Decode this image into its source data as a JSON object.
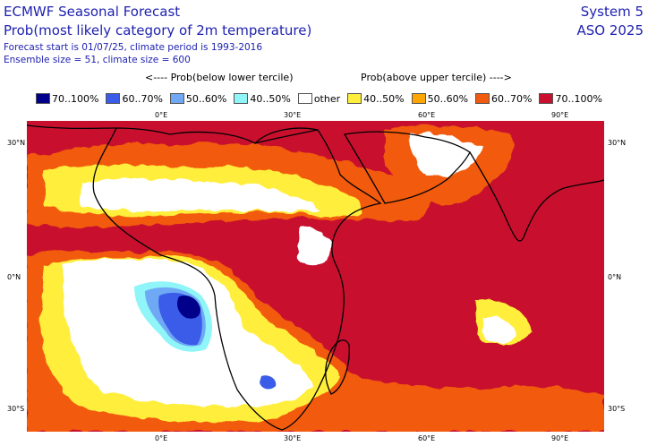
{
  "header": {
    "line1": "ECMWF Seasonal Forecast",
    "line2": "Prob(most likely category of 2m temperature)",
    "info1": "Forecast start is 01/07/25, climate period is 1993-2016",
    "info2": "Ensemble size = 51, climate size = 600",
    "system": "System 5",
    "season": "ASO 2025"
  },
  "legend_headers": {
    "below": "<---- Prob(below lower tercile)",
    "above": "Prob(above upper tercile) ---->"
  },
  "legend": [
    {
      "label": "70..100%",
      "color": "#00008b"
    },
    {
      "label": "60..70%",
      "color": "#3a5ce8"
    },
    {
      "label": "50..60%",
      "color": "#6fa8f4"
    },
    {
      "label": "40..50%",
      "color": "#8ff5f8"
    },
    {
      "label": "other",
      "color": "#ffffff"
    },
    {
      "label": "40..50%",
      "color": "#ffee3a"
    },
    {
      "label": "50..60%",
      "color": "#ffa500"
    },
    {
      "label": "60..70%",
      "color": "#f25a10"
    },
    {
      "label": "70..100%",
      "color": "#c8102e"
    }
  ],
  "ticks": {
    "top": [
      "0°E",
      "30°E",
      "60°E",
      "90°E"
    ],
    "bottom": [
      "0°E",
      "30°E",
      "60°E",
      "90°E"
    ],
    "left": [
      "30°N",
      "0°N",
      "30°S"
    ],
    "right": [
      "30°N",
      "0°N",
      "30°S"
    ]
  }
}
